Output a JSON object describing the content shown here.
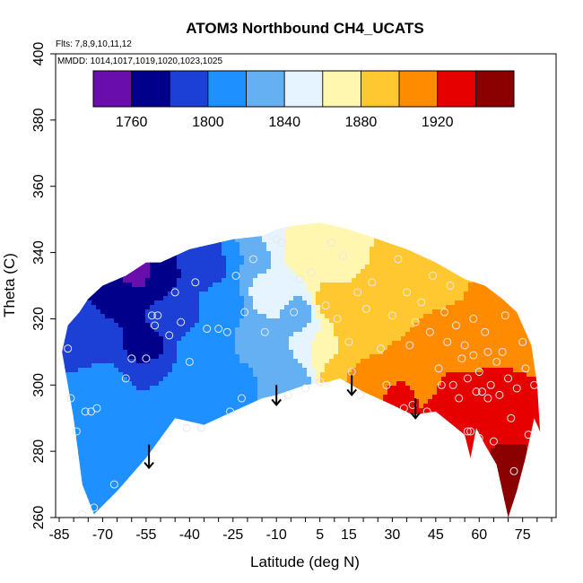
{
  "chart_data": {
    "type": "heatmap",
    "title": "ATOM3 Northbound CH4_UCATS",
    "flights_note": "Flts: 7,8,9,10,11,12",
    "dates_note": "MMDD: 1014,1017,1019,1020,1023,1025",
    "xlabel": "Latitude (deg N)",
    "ylabel": "Theta (C)",
    "xlim": [
      -85,
      85
    ],
    "ylim": [
      260,
      400
    ],
    "x_ticks": [
      "-85",
      "-70",
      "-55",
      "-40",
      "-25",
      "-10",
      "5",
      "15",
      "30",
      "45",
      "60",
      "75"
    ],
    "x_tick_values": [
      -85,
      -70,
      -55,
      -40,
      -25,
      -10,
      5,
      15,
      30,
      45,
      60,
      75
    ],
    "y_ticks": [
      "260",
      "280",
      "300",
      "320",
      "340",
      "360",
      "380",
      "400"
    ],
    "y_tick_values": [
      260,
      280,
      300,
      320,
      340,
      360,
      380,
      400
    ],
    "colorbar": {
      "range": [
        1740,
        1960
      ],
      "tick_labels": [
        "1760",
        "1800",
        "1840",
        "1880",
        "1920"
      ],
      "tick_values": [
        1760,
        1800,
        1840,
        1880,
        1920
      ],
      "bin_edges": [
        1740,
        1760,
        1780,
        1800,
        1820,
        1840,
        1860,
        1880,
        1900,
        1920,
        1940,
        1960
      ],
      "colors": [
        "#6a0dad",
        "#00008b",
        "#1c3fd6",
        "#1e90ff",
        "#64b0f2",
        "#e6f4ff",
        "#fff6b0",
        "#ffc830",
        "#ff8c00",
        "#e60000",
        "#8b0000"
      ]
    },
    "coverage_envelope": {
      "lat": [
        -84,
        -80,
        -77,
        -73,
        -65,
        -55,
        -45,
        -40,
        -35,
        -25,
        -15,
        -10,
        0,
        8,
        12,
        20,
        30,
        37,
        45,
        55,
        57,
        59,
        62,
        66,
        70,
        73,
        76,
        79,
        81,
        80,
        78,
        73,
        68,
        62,
        55,
        45,
        35,
        25,
        15,
        5,
        -5,
        -10,
        -15,
        -25,
        -30,
        -40,
        -45,
        -50,
        -55,
        -62,
        -70,
        -75,
        -78,
        -82,
        -84
      ],
      "theta": [
        310,
        290,
        270,
        261,
        268,
        278,
        290,
        289,
        288,
        292,
        296,
        297,
        300,
        301,
        302,
        298,
        294,
        291,
        292,
        285,
        278,
        287,
        282,
        276,
        260,
        268,
        278,
        290,
        286,
        300,
        312,
        322,
        326,
        330,
        332,
        337,
        341,
        344,
        347,
        349,
        348,
        347,
        345,
        344,
        343,
        341,
        339,
        337,
        337,
        333,
        330,
        326,
        322,
        318,
        310
      ]
    },
    "field_samples": [
      {
        "lat": -80,
        "theta": 290,
        "ch4": 1805
      },
      {
        "lat": -75,
        "theta": 312,
        "ch4": 1798
      },
      {
        "lat": -70,
        "theta": 300,
        "ch4": 1805
      },
      {
        "lat": -68,
        "theta": 318,
        "ch4": 1780
      },
      {
        "lat": -62,
        "theta": 326,
        "ch4": 1775
      },
      {
        "lat": -60,
        "theta": 285,
        "ch4": 1808
      },
      {
        "lat": -58,
        "theta": 333,
        "ch4": 1755
      },
      {
        "lat": -55,
        "theta": 312,
        "ch4": 1775
      },
      {
        "lat": -52,
        "theta": 300,
        "ch4": 1800
      },
      {
        "lat": -50,
        "theta": 330,
        "ch4": 1778
      },
      {
        "lat": -45,
        "theta": 322,
        "ch4": 1795
      },
      {
        "lat": -42,
        "theta": 295,
        "ch4": 1808
      },
      {
        "lat": -38,
        "theta": 310,
        "ch4": 1805
      },
      {
        "lat": -35,
        "theta": 336,
        "ch4": 1780
      },
      {
        "lat": -28,
        "theta": 325,
        "ch4": 1815
      },
      {
        "lat": -25,
        "theta": 300,
        "ch4": 1815
      },
      {
        "lat": -20,
        "theta": 340,
        "ch4": 1820
      },
      {
        "lat": -15,
        "theta": 312,
        "ch4": 1825
      },
      {
        "lat": -12,
        "theta": 328,
        "ch4": 1850
      },
      {
        "lat": -8,
        "theta": 345,
        "ch4": 1860
      },
      {
        "lat": -5,
        "theta": 302,
        "ch4": 1828
      },
      {
        "lat": -2,
        "theta": 322,
        "ch4": 1835
      },
      {
        "lat": 2,
        "theta": 340,
        "ch4": 1875
      },
      {
        "lat": 5,
        "theta": 310,
        "ch4": 1860
      },
      {
        "lat": 8,
        "theta": 325,
        "ch4": 1885
      },
      {
        "lat": 12,
        "theta": 304,
        "ch4": 1900
      },
      {
        "lat": 15,
        "theta": 338,
        "ch4": 1878
      },
      {
        "lat": 18,
        "theta": 315,
        "ch4": 1895
      },
      {
        "lat": 22,
        "theta": 300,
        "ch4": 1912
      },
      {
        "lat": 25,
        "theta": 330,
        "ch4": 1885
      },
      {
        "lat": 30,
        "theta": 312,
        "ch4": 1900
      },
      {
        "lat": 32,
        "theta": 296,
        "ch4": 1922
      },
      {
        "lat": 35,
        "theta": 338,
        "ch4": 1885
      },
      {
        "lat": 40,
        "theta": 320,
        "ch4": 1900
      },
      {
        "lat": 42,
        "theta": 300,
        "ch4": 1918
      },
      {
        "lat": 48,
        "theta": 330,
        "ch4": 1898
      },
      {
        "lat": 50,
        "theta": 296,
        "ch4": 1925
      },
      {
        "lat": 55,
        "theta": 315,
        "ch4": 1912
      },
      {
        "lat": 58,
        "theta": 290,
        "ch4": 1935
      },
      {
        "lat": 62,
        "theta": 305,
        "ch4": 1920
      },
      {
        "lat": 65,
        "theta": 322,
        "ch4": 1905
      },
      {
        "lat": 70,
        "theta": 298,
        "ch4": 1928
      },
      {
        "lat": 72,
        "theta": 275,
        "ch4": 1945
      },
      {
        "lat": 76,
        "theta": 312,
        "ch4": 1900
      },
      {
        "lat": 79,
        "theta": 290,
        "ch4": 1932
      }
    ],
    "observations": [
      {
        "lat": -82,
        "theta": 311
      },
      {
        "lat": -81,
        "theta": 296
      },
      {
        "lat": -79,
        "theta": 286
      },
      {
        "lat": -77,
        "theta": 261
      },
      {
        "lat": -76,
        "theta": 292
      },
      {
        "lat": -74,
        "theta": 292
      },
      {
        "lat": -73,
        "theta": 263
      },
      {
        "lat": -72,
        "theta": 293
      },
      {
        "lat": -66,
        "theta": 270
      },
      {
        "lat": -62,
        "theta": 302
      },
      {
        "lat": -60,
        "theta": 308
      },
      {
        "lat": -55,
        "theta": 308
      },
      {
        "lat": -53,
        "theta": 321
      },
      {
        "lat": -52,
        "theta": 318
      },
      {
        "lat": -51,
        "theta": 321
      },
      {
        "lat": -47,
        "theta": 315
      },
      {
        "lat": -45,
        "theta": 328
      },
      {
        "lat": -43,
        "theta": 319
      },
      {
        "lat": -41,
        "theta": 287
      },
      {
        "lat": -40,
        "theta": 307
      },
      {
        "lat": -38,
        "theta": 331
      },
      {
        "lat": -36,
        "theta": 287
      },
      {
        "lat": -34,
        "theta": 317
      },
      {
        "lat": -30,
        "theta": 317
      },
      {
        "lat": -27,
        "theta": 316
      },
      {
        "lat": -26,
        "theta": 292
      },
      {
        "lat": -24,
        "theta": 333
      },
      {
        "lat": -22,
        "theta": 296
      },
      {
        "lat": -21,
        "theta": 322
      },
      {
        "lat": -18,
        "theta": 338
      },
      {
        "lat": -14,
        "theta": 316
      },
      {
        "lat": -10,
        "theta": 344
      },
      {
        "lat": -8,
        "theta": 343
      },
      {
        "lat": -6,
        "theta": 297
      },
      {
        "lat": -4,
        "theta": 322
      },
      {
        "lat": -2,
        "theta": 332
      },
      {
        "lat": 0,
        "theta": 299
      },
      {
        "lat": 2,
        "theta": 334
      },
      {
        "lat": 5,
        "theta": 301
      },
      {
        "lat": 7,
        "theta": 324
      },
      {
        "lat": 9,
        "theta": 343
      },
      {
        "lat": 11,
        "theta": 320
      },
      {
        "lat": 13,
        "theta": 339
      },
      {
        "lat": 15,
        "theta": 313
      },
      {
        "lat": 16,
        "theta": 304
      },
      {
        "lat": 18,
        "theta": 328
      },
      {
        "lat": 19,
        "theta": 297
      },
      {
        "lat": 21,
        "theta": 323
      },
      {
        "lat": 23,
        "theta": 331
      },
      {
        "lat": 26,
        "theta": 311
      },
      {
        "lat": 28,
        "theta": 300
      },
      {
        "lat": 30,
        "theta": 321
      },
      {
        "lat": 32,
        "theta": 338
      },
      {
        "lat": 34,
        "theta": 293
      },
      {
        "lat": 35,
        "theta": 328
      },
      {
        "lat": 36,
        "theta": 312
      },
      {
        "lat": 37,
        "theta": 294
      },
      {
        "lat": 38,
        "theta": 319
      },
      {
        "lat": 40,
        "theta": 325
      },
      {
        "lat": 42,
        "theta": 292
      },
      {
        "lat": 43,
        "theta": 316
      },
      {
        "lat": 44,
        "theta": 333
      },
      {
        "lat": 46,
        "theta": 305
      },
      {
        "lat": 47,
        "theta": 300
      },
      {
        "lat": 48,
        "theta": 322
      },
      {
        "lat": 49,
        "theta": 313
      },
      {
        "lat": 50,
        "theta": 330
      },
      {
        "lat": 51,
        "theta": 300
      },
      {
        "lat": 52,
        "theta": 318
      },
      {
        "lat": 53,
        "theta": 296
      },
      {
        "lat": 54,
        "theta": 308
      },
      {
        "lat": 55,
        "theta": 312
      },
      {
        "lat": 56,
        "theta": 286
      },
      {
        "lat": 56,
        "theta": 302
      },
      {
        "lat": 57,
        "theta": 286
      },
      {
        "lat": 58,
        "theta": 309
      },
      {
        "lat": 58,
        "theta": 320
      },
      {
        "lat": 59,
        "theta": 298
      },
      {
        "lat": 60,
        "theta": 304
      },
      {
        "lat": 60,
        "theta": 284
      },
      {
        "lat": 61,
        "theta": 298
      },
      {
        "lat": 62,
        "theta": 316
      },
      {
        "lat": 63,
        "theta": 310
      },
      {
        "lat": 63,
        "theta": 296
      },
      {
        "lat": 64,
        "theta": 300
      },
      {
        "lat": 65,
        "theta": 283
      },
      {
        "lat": 66,
        "theta": 307
      },
      {
        "lat": 67,
        "theta": 297
      },
      {
        "lat": 68,
        "theta": 310
      },
      {
        "lat": 69,
        "theta": 321
      },
      {
        "lat": 70,
        "theta": 302
      },
      {
        "lat": 71,
        "theta": 290
      },
      {
        "lat": 72,
        "theta": 274
      },
      {
        "lat": 73,
        "theta": 299
      },
      {
        "lat": 75,
        "theta": 313
      },
      {
        "lat": 76,
        "theta": 305
      },
      {
        "lat": 77,
        "theta": 285
      },
      {
        "lat": 79,
        "theta": 300
      }
    ],
    "flight_markers": [
      {
        "lat": -54,
        "theta_top": 282,
        "theta_bottom": 275
      },
      {
        "lat": -10,
        "theta_top": 300,
        "theta_bottom": 294
      },
      {
        "lat": 16,
        "theta_top": 303,
        "theta_bottom": 297
      },
      {
        "lat": 38,
        "theta_top": 296,
        "theta_bottom": 290
      }
    ]
  }
}
